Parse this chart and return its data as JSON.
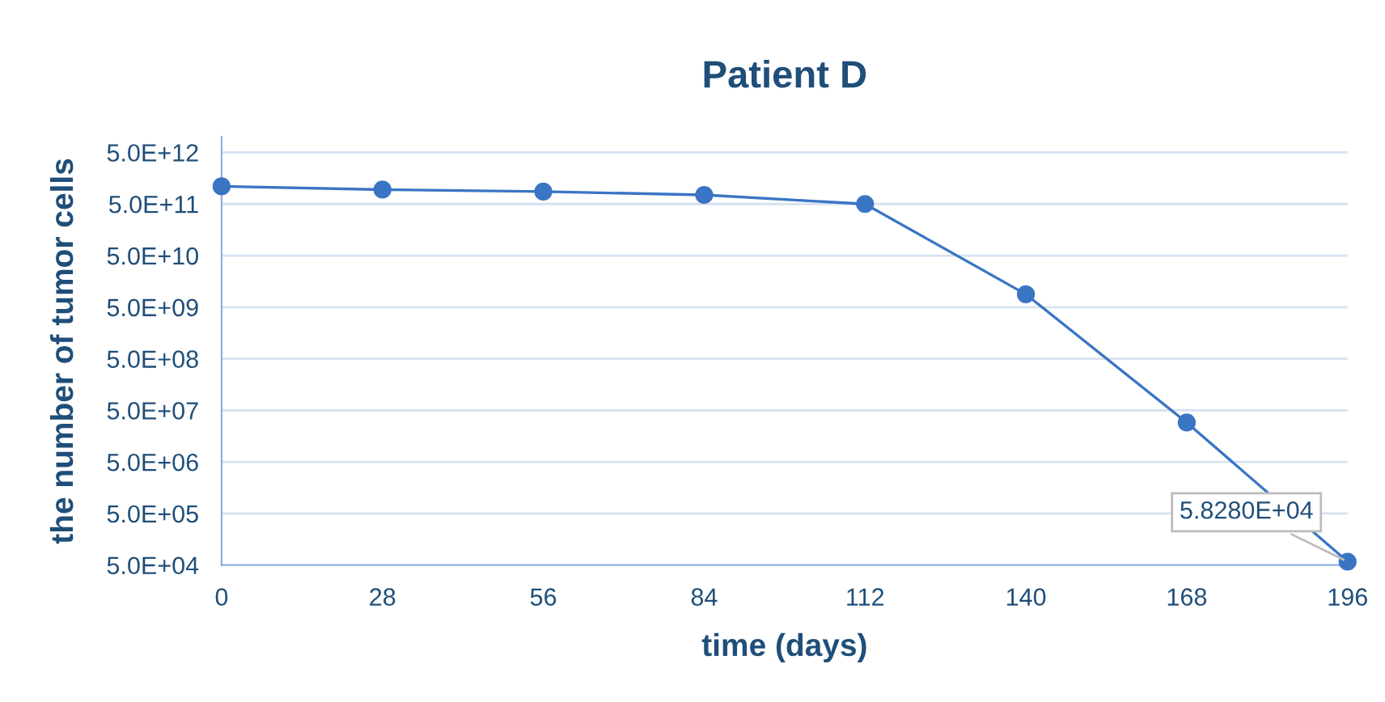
{
  "chart_data": {
    "type": "line",
    "title": "Patient D",
    "xlabel": "time (days)",
    "ylabel": "the number of tumor cells",
    "x": [
      0,
      28,
      56,
      84,
      112,
      140,
      168,
      196
    ],
    "series": [
      {
        "color": "#3a75c4",
        "values": [
          1100000000000.0,
          950000000000.0,
          870000000000.0,
          750000000000.0,
          500000000000.0,
          8900000000.0,
          29000000.0,
          58280.0
        ],
        "value_labels": [
          null,
          null,
          null,
          null,
          null,
          null,
          null,
          "5.8280E+04"
        ]
      }
    ],
    "log": "y",
    "xlim": [
      0,
      196
    ],
    "xticks": [
      0,
      28,
      56,
      84,
      112,
      140,
      168,
      196
    ],
    "ylim": [
      50000.0,
      10000000000000.0
    ],
    "yticks": [
      {
        "value": 50000.0,
        "label": "5.0E+04"
      },
      {
        "value": 500000.0,
        "label": "5.0E+05"
      },
      {
        "value": 5000000.0,
        "label": "5.0E+06"
      },
      {
        "value": 50000000.0,
        "label": "5.0E+07"
      },
      {
        "value": 500000000.0,
        "label": "5.0E+08"
      },
      {
        "value": 5000000000.0,
        "label": "5.0E+09"
      },
      {
        "value": 50000000000.0,
        "label": "5.0E+10"
      },
      {
        "value": 500000000000.0,
        "label": "5.0E+11"
      },
      {
        "value": 5000000000000.0,
        "label": "5.0E+12"
      }
    ],
    "grid": "y",
    "marker": "circle",
    "line_style": "solid",
    "legend": false
  }
}
